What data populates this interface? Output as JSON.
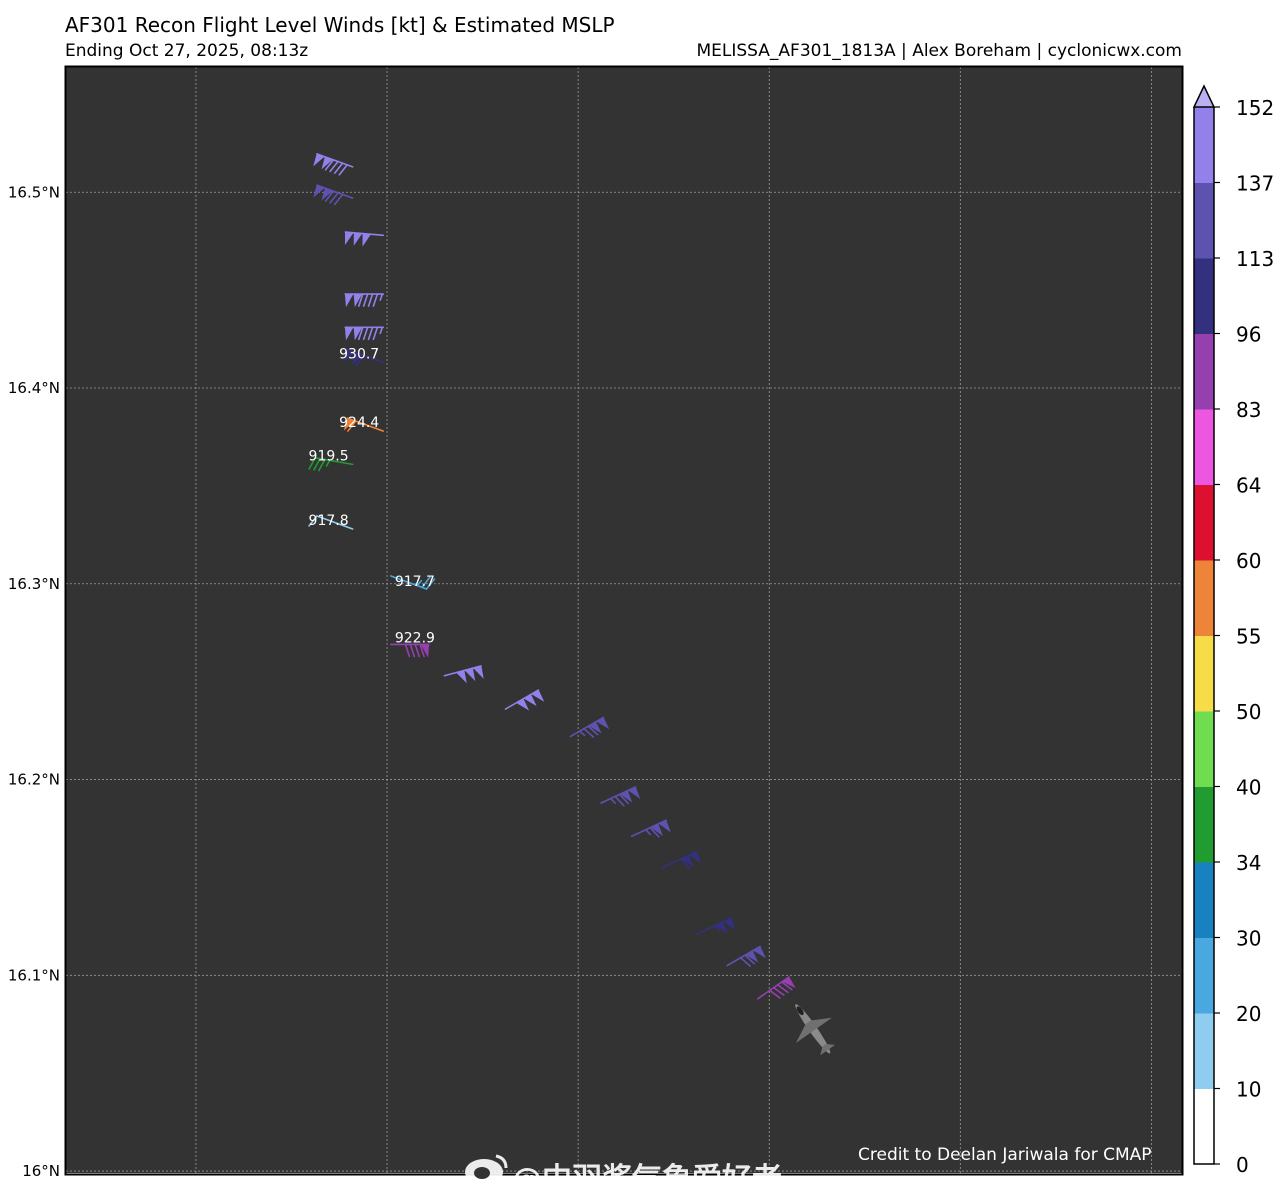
{
  "chart_data": {
    "type": "wind-barb-map",
    "title": "AF301 Recon Flight Level Winds [kt] & Estimated MSLP",
    "subtitle": "Ending Oct 27, 2025, 08:13z",
    "source": "MELISSA_AF301_1813A | Alex Boreham | cyclonicwx.com",
    "credit": "Credit to Deelan Jariwala for CMAP",
    "ylabel": "",
    "xlabel": "",
    "lat_range": [
      15.999,
      16.564
    ],
    "lon_range": [
      -78.334,
      -78.042
    ],
    "lat_ticks": [
      {
        "value": 16.0,
        "label": "16°N"
      },
      {
        "value": 16.1,
        "label": "16.1°N"
      },
      {
        "value": 16.2,
        "label": "16.2°N"
      },
      {
        "value": 16.3,
        "label": "16.3°N"
      },
      {
        "value": 16.4,
        "label": "16.4°N"
      },
      {
        "value": 16.5,
        "label": "16.5°N"
      }
    ],
    "lon_gridlines": [
      -78.3,
      -78.25,
      -78.2,
      -78.15,
      -78.1,
      -78.05
    ],
    "grid": true,
    "background": "#333333",
    "colorbar": {
      "placement": "right",
      "levels": [
        0,
        10,
        20,
        30,
        34,
        40,
        50,
        55,
        60,
        64,
        83,
        96,
        113,
        137,
        152
      ],
      "colors": [
        "#ffffff",
        "#8ecdf0",
        "#4aa8e0",
        "#1882c0",
        "#209c30",
        "#70dd50",
        "#f5dc48",
        "#ee8438",
        "#dd1030",
        "#ec56e0",
        "#9640b0",
        "#343080",
        "#5e52b0",
        "#9480ea"
      ],
      "extend_color": "#b8b0f0"
    },
    "barbs": [
      {
        "lat": 16.513,
        "lon": -78.259,
        "speed": 140,
        "dir": 290
      },
      {
        "lat": 16.497,
        "lon": -78.259,
        "speed": 130,
        "dir": 290
      },
      {
        "lat": 16.478,
        "lon": -78.251,
        "speed": 150,
        "dir": 275
      },
      {
        "lat": 16.448,
        "lon": -78.251,
        "speed": 145,
        "dir": 270
      },
      {
        "lat": 16.431,
        "lon": -78.251,
        "speed": 145,
        "dir": 270
      },
      {
        "lat": 16.413,
        "lon": -78.251,
        "speed": 110,
        "dir": 290,
        "mslp": "930.7"
      },
      {
        "lat": 16.378,
        "lon": -78.251,
        "speed": 58,
        "dir": 290,
        "mslp": "924.4"
      },
      {
        "lat": 16.361,
        "lon": -78.259,
        "speed": 35,
        "dir": 280,
        "mslp": "919.5"
      },
      {
        "lat": 16.328,
        "lon": -78.259,
        "speed": 12,
        "dir": 290,
        "mslp": "917.8"
      },
      {
        "lat": 16.304,
        "lon": -78.249,
        "speed": 23,
        "dir": 110,
        "mslp": "917.7"
      },
      {
        "lat": 16.269,
        "lon": -78.249,
        "speed": 90,
        "dir": 90,
        "mslp": "922.9"
      },
      {
        "lat": 16.253,
        "lon": -78.235,
        "speed": 150,
        "dir": 75
      },
      {
        "lat": 16.236,
        "lon": -78.219,
        "speed": 150,
        "dir": 60
      },
      {
        "lat": 16.222,
        "lon": -78.202,
        "speed": 125,
        "dir": 60
      },
      {
        "lat": 16.188,
        "lon": -78.194,
        "speed": 125,
        "dir": 65
      },
      {
        "lat": 16.171,
        "lon": -78.186,
        "speed": 115,
        "dir": 65
      },
      {
        "lat": 16.155,
        "lon": -78.178,
        "speed": 110,
        "dir": 65
      },
      {
        "lat": 16.121,
        "lon": -78.169,
        "speed": 105,
        "dir": 65
      },
      {
        "lat": 16.105,
        "lon": -78.161,
        "speed": 120,
        "dir": 60
      },
      {
        "lat": 16.088,
        "lon": -78.153,
        "speed": 90,
        "dir": 55
      }
    ]
  },
  "watermark": {
    "text": "@中羽酱气象爱好者",
    "logo": "weibo-logo-icon"
  },
  "aircraft_icon": "aircraft-icon"
}
